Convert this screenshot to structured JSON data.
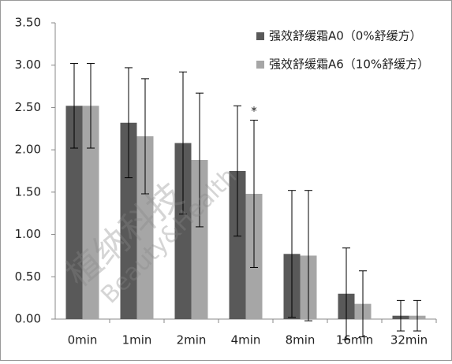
{
  "chart_data": {
    "type": "bar",
    "categories": [
      "0min",
      "1min",
      "2min",
      "4min",
      "8min",
      "16min",
      "32min"
    ],
    "series": [
      {
        "name": "强效舒缓霜A0（0%舒缓方）",
        "color": "#595959",
        "values": [
          2.52,
          2.32,
          2.08,
          1.75,
          0.77,
          0.3,
          0.04
        ],
        "errors": [
          0.5,
          0.65,
          0.84,
          0.77,
          0.75,
          0.54,
          0.18
        ]
      },
      {
        "name": "强效舒缓霜A6（10%舒缓方）",
        "color": "#a6a6a6",
        "values": [
          2.52,
          2.16,
          1.88,
          1.48,
          0.75,
          0.18,
          0.04
        ],
        "errors": [
          0.5,
          0.68,
          0.79,
          0.87,
          0.77,
          0.39,
          0.18
        ]
      }
    ],
    "ylim": [
      0,
      3.5
    ],
    "yticks": [
      {
        "value": 0,
        "label": "0.00"
      },
      {
        "value": 0.5,
        "label": "0.50"
      },
      {
        "value": 1,
        "label": "1.00"
      },
      {
        "value": 1.5,
        "label": "1.50"
      },
      {
        "value": 2,
        "label": "2.00"
      },
      {
        "value": 2.5,
        "label": "2.50"
      },
      {
        "value": 3,
        "label": "3.00"
      },
      {
        "value": 3.5,
        "label": "3.50"
      }
    ],
    "grid": false,
    "legend": "top-right",
    "annotations": [
      {
        "text": "*",
        "category": 3,
        "series": 1
      }
    ],
    "watermark": [
      "植纳科技",
      "Beauty&Health"
    ]
  }
}
